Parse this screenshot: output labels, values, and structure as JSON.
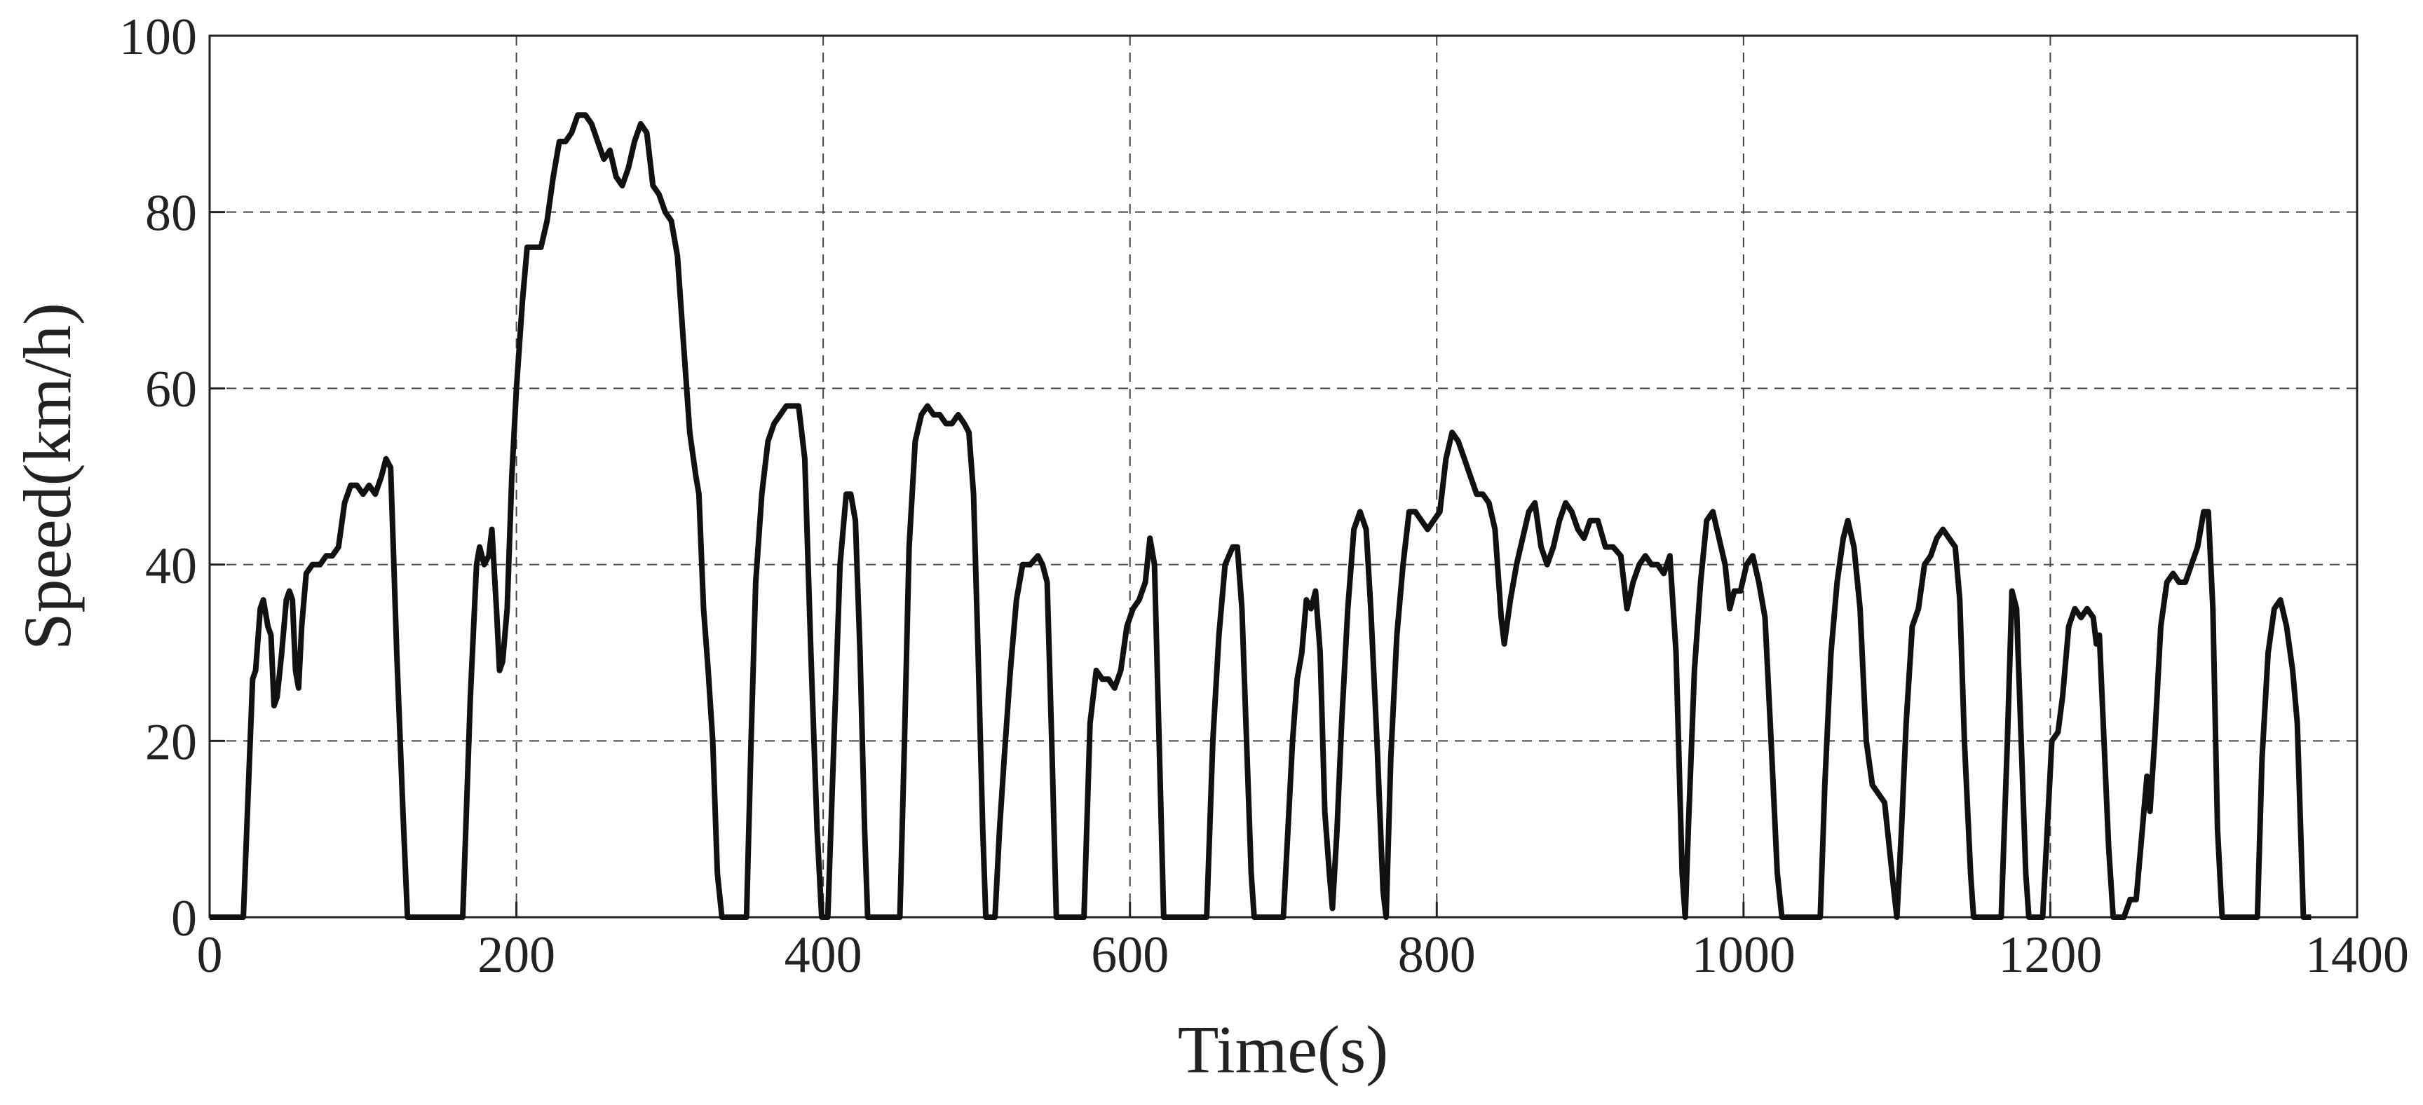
{
  "chart_data": {
    "type": "line",
    "x_label": "Time(s)",
    "y_label": "Speed(km/h)",
    "xlim": [
      0,
      1400
    ],
    "xticks": [
      0,
      200,
      400,
      600,
      800,
      1000,
      1200,
      1400
    ],
    "ylim": [
      0,
      100
    ],
    "yticks": [
      0,
      20,
      40,
      60,
      80,
      100
    ],
    "grid": true,
    "x": [
      0,
      22,
      28,
      30,
      33,
      35,
      38,
      40,
      42,
      44,
      47,
      50,
      52,
      54,
      56,
      58,
      60,
      63,
      67,
      72,
      76,
      80,
      84,
      88,
      92,
      96,
      100,
      104,
      108,
      112,
      115,
      118,
      122,
      126,
      129,
      165,
      170,
      174,
      176,
      179,
      182,
      184,
      187,
      189,
      191,
      194,
      197,
      200,
      204,
      207,
      212,
      216,
      220,
      224,
      228,
      232,
      236,
      240,
      245,
      249,
      253,
      257,
      261,
      265,
      269,
      273,
      277,
      281,
      285,
      289,
      293,
      297,
      301,
      305,
      309,
      313,
      317,
      319,
      322,
      325,
      328,
      331,
      334,
      350,
      353,
      356,
      360,
      364,
      368,
      372,
      376,
      380,
      384,
      388,
      392,
      396,
      399,
      403,
      407,
      411,
      415,
      418,
      421,
      424,
      427,
      429,
      450,
      453,
      456,
      460,
      464,
      468,
      472,
      476,
      480,
      484,
      488,
      492,
      495,
      498,
      501,
      504,
      506,
      512,
      515,
      518,
      522,
      526,
      530,
      535,
      540,
      543,
      546,
      549,
      552,
      570,
      574,
      578,
      582,
      586,
      590,
      594,
      598,
      602,
      606,
      610,
      613,
      616,
      619,
      622,
      650,
      654,
      658,
      662,
      667,
      670,
      673,
      676,
      679,
      681,
      700,
      703,
      706,
      709,
      712,
      715,
      718,
      721,
      724,
      727,
      730,
      732,
      735,
      738,
      742,
      746,
      750,
      754,
      757,
      761,
      765,
      767,
      770,
      774,
      778,
      782,
      786,
      790,
      794,
      798,
      802,
      806,
      810,
      814,
      818,
      822,
      826,
      830,
      834,
      838,
      842,
      844,
      848,
      852,
      856,
      860,
      864,
      868,
      872,
      876,
      880,
      884,
      888,
      892,
      896,
      900,
      905,
      910,
      915,
      920,
      924,
      928,
      932,
      936,
      940,
      944,
      948,
      952,
      956,
      960,
      962,
      964,
      968,
      972,
      976,
      980,
      984,
      988,
      991,
      994,
      998,
      1002,
      1006,
      1010,
      1014,
      1018,
      1022,
      1025,
      1050,
      1053,
      1057,
      1061,
      1065,
      1068,
      1072,
      1076,
      1080,
      1084,
      1088,
      1092,
      1095,
      1098,
      1100,
      1103,
      1106,
      1110,
      1114,
      1118,
      1122,
      1126,
      1130,
      1134,
      1138,
      1141,
      1144,
      1148,
      1150,
      1168,
      1172,
      1175,
      1178,
      1181,
      1184,
      1186,
      1195,
      1198,
      1201,
      1205,
      1208,
      1212,
      1216,
      1220,
      1224,
      1228,
      1230,
      1232,
      1235,
      1238,
      1241,
      1248,
      1252,
      1256,
      1259,
      1263,
      1265,
      1268,
      1272,
      1276,
      1280,
      1284,
      1288,
      1292,
      1296,
      1300,
      1303,
      1306,
      1309,
      1312,
      1335,
      1338,
      1342,
      1346,
      1350,
      1354,
      1358,
      1361,
      1365,
      1370
    ],
    "series": [
      {
        "name": "Speed",
        "color": "#111111",
        "values": [
          0,
          0,
          27,
          28,
          35,
          36,
          33,
          32,
          24,
          25,
          30,
          36,
          37,
          36,
          28,
          26,
          33,
          39,
          40,
          40,
          41,
          41,
          42,
          47,
          49,
          49,
          48,
          49,
          48,
          50,
          52,
          51,
          30,
          12,
          0,
          0,
          25,
          40,
          42,
          40,
          41,
          44,
          35,
          28,
          29,
          35,
          50,
          60,
          70,
          76,
          76,
          76,
          79,
          84,
          88,
          88,
          89,
          91,
          91,
          90,
          88,
          86,
          87,
          84,
          83,
          85,
          88,
          90,
          89,
          83,
          82,
          80,
          79,
          75,
          65,
          55,
          50,
          48,
          35,
          28,
          20,
          5,
          0,
          0,
          20,
          38,
          48,
          54,
          56,
          57,
          58,
          58,
          58,
          52,
          30,
          10,
          0,
          0,
          20,
          40,
          48,
          48,
          45,
          30,
          10,
          0,
          0,
          20,
          42,
          54,
          57,
          58,
          57,
          57,
          56,
          56,
          57,
          56,
          55,
          48,
          30,
          10,
          0,
          0,
          10,
          18,
          28,
          36,
          40,
          40,
          41,
          40,
          38,
          20,
          0,
          0,
          22,
          28,
          27,
          27,
          26,
          28,
          33,
          35,
          36,
          38,
          43,
          40,
          20,
          0,
          0,
          20,
          32,
          40,
          42,
          42,
          35,
          20,
          5,
          0,
          0,
          10,
          20,
          27,
          30,
          36,
          35,
          37,
          30,
          12,
          5,
          1,
          10,
          22,
          35,
          44,
          46,
          44,
          35,
          20,
          3,
          0,
          18,
          32,
          40,
          46,
          46,
          45,
          44,
          45,
          46,
          52,
          55,
          54,
          52,
          50,
          48,
          48,
          47,
          44,
          34,
          31,
          36,
          40,
          43,
          46,
          47,
          42,
          40,
          42,
          45,
          47,
          46,
          44,
          43,
          45,
          45,
          42,
          42,
          41,
          35,
          38,
          40,
          41,
          40,
          40,
          39,
          41,
          30,
          5,
          0,
          10,
          28,
          38,
          45,
          46,
          43,
          40,
          35,
          37,
          37,
          40,
          41,
          38,
          34,
          20,
          5,
          0,
          0,
          15,
          30,
          38,
          43,
          45,
          42,
          35,
          20,
          15,
          14,
          13,
          8,
          3,
          0,
          10,
          22,
          33,
          35,
          40,
          41,
          43,
          44,
          43,
          42,
          36,
          20,
          5,
          0,
          0,
          20,
          37,
          35,
          20,
          5,
          0,
          0,
          10,
          20,
          21,
          25,
          33,
          35,
          34,
          35,
          34,
          31,
          32,
          20,
          8,
          0,
          0,
          2,
          2,
          8,
          16,
          12,
          20,
          33,
          38,
          39,
          38,
          38,
          40,
          42,
          46,
          46,
          35,
          10,
          0,
          0,
          18,
          30,
          35,
          36,
          33,
          28,
          22,
          0,
          0
        ]
      }
    ]
  }
}
